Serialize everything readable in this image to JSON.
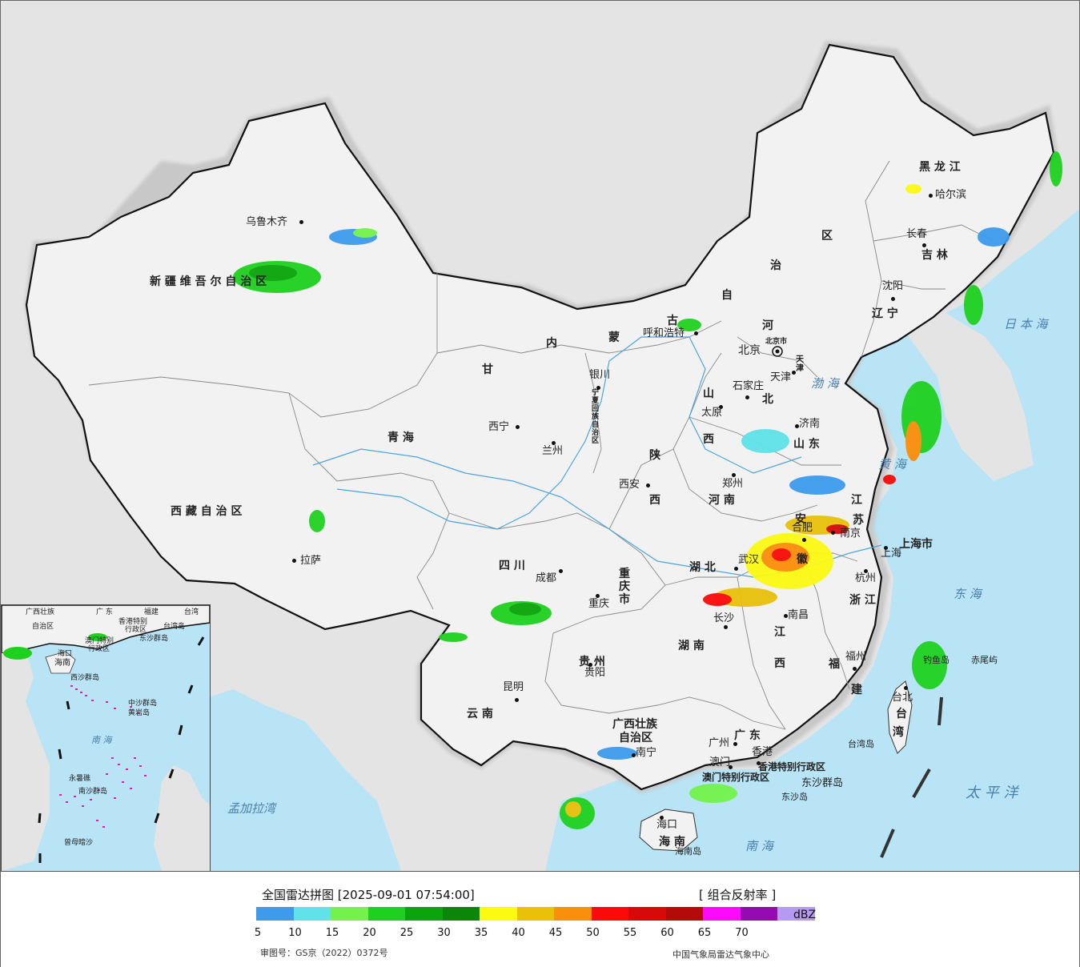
{
  "legend": {
    "title": "全国雷达拼图 [2025-09-01 07:54:00]",
    "product": "[ 组合反射率 ]",
    "unit": "dBZ",
    "ticks": [
      "5",
      "10",
      "15",
      "20",
      "25",
      "30",
      "35",
      "40",
      "45",
      "50",
      "55",
      "60",
      "65",
      "70"
    ],
    "colors": [
      "#3d9bed",
      "#5fe3e8",
      "#73f24c",
      "#1fd11f",
      "#0aa50a",
      "#0a870a",
      "#fcf913",
      "#e8c10a",
      "#fb8e0a",
      "#fb0a0a",
      "#d60a0a",
      "#b40a0a",
      "#fb0afb",
      "#960ab4",
      "#b69af2"
    ],
    "approval": "审图号：GS京（2022）0372号",
    "source": "中国气象局雷达气象中心"
  },
  "colors": {
    "sea": "#b8e4f5",
    "land": "#f2f2f2",
    "foreign": "#e4e4e4",
    "border": "#111111"
  },
  "provinces": [
    {
      "id": "xinjiang",
      "text": "新 疆 维 吾 尔 自 治 区"
    },
    {
      "id": "xizang",
      "text": "西 藏 自 治 区"
    },
    {
      "id": "qinghai",
      "text": "青 海"
    },
    {
      "id": "gansu",
      "text": "甘"
    },
    {
      "id": "sichuan",
      "text": "四 川"
    },
    {
      "id": "yunnan",
      "text": "云 南"
    },
    {
      "id": "guizhou",
      "text": "贵 州"
    },
    {
      "id": "chongqing",
      "text": "重 庆 市"
    },
    {
      "id": "guangxi",
      "text": "广西壮族"
    },
    {
      "id": "guangxi2",
      "text": "自治区"
    },
    {
      "id": "guangdong",
      "text": "广 东"
    },
    {
      "id": "hainan",
      "text": "海 南"
    },
    {
      "id": "hunan",
      "text": "湖 南"
    },
    {
      "id": "hubei",
      "text": "湖 北"
    },
    {
      "id": "jiangxi",
      "text": "江"
    },
    {
      "id": "jiangxi2",
      "text": "西"
    },
    {
      "id": "fujian",
      "text": "福"
    },
    {
      "id": "fujian2",
      "text": "建"
    },
    {
      "id": "zhejiang",
      "text": "浙 江"
    },
    {
      "id": "anhui",
      "text": "安"
    },
    {
      "id": "anhui2",
      "text": "徽"
    },
    {
      "id": "jiangsu",
      "text": "江"
    },
    {
      "id": "jiangsu2",
      "text": "苏"
    },
    {
      "id": "shanghai",
      "text": "上海市"
    },
    {
      "id": "shandong",
      "text": "山 东"
    },
    {
      "id": "henan",
      "text": "河 南"
    },
    {
      "id": "shanxi",
      "text": "山"
    },
    {
      "id": "shanxi2",
      "text": "西"
    },
    {
      "id": "shaanxi",
      "text": "陕"
    },
    {
      "id": "shaanxi2",
      "text": "西"
    },
    {
      "id": "hebei",
      "text": "河"
    },
    {
      "id": "hebei2",
      "text": "北"
    },
    {
      "id": "neimeng",
      "text": "内"
    },
    {
      "id": "neimeng2",
      "text": "蒙"
    },
    {
      "id": "neimeng3",
      "text": "古"
    },
    {
      "id": "neimeng4",
      "text": "自"
    },
    {
      "id": "neimeng5",
      "text": "治"
    },
    {
      "id": "neimeng6",
      "text": "区"
    },
    {
      "id": "liaoning",
      "text": "辽 宁"
    },
    {
      "id": "jilin",
      "text": "吉 林"
    },
    {
      "id": "heilongjiang",
      "text": "黑 龙 江"
    },
    {
      "id": "taiwan",
      "text": "台"
    },
    {
      "id": "taiwan2",
      "text": "湾"
    },
    {
      "id": "ningxia",
      "text": "宁夏回族自治区"
    },
    {
      "id": "tianjin",
      "text": "天津"
    },
    {
      "id": "beijing",
      "text": "北京市"
    }
  ],
  "cities": [
    {
      "id": "urumqi",
      "text": "乌鲁木齐"
    },
    {
      "id": "lhasa",
      "text": "拉萨"
    },
    {
      "id": "xining",
      "text": "西宁"
    },
    {
      "id": "lanzhou",
      "text": "兰州"
    },
    {
      "id": "yinchuan",
      "text": "银川"
    },
    {
      "id": "hohhot",
      "text": "呼和浩特"
    },
    {
      "id": "beijing",
      "text": "北京"
    },
    {
      "id": "tianjin",
      "text": "天津"
    },
    {
      "id": "shijiazhuang",
      "text": "石家庄"
    },
    {
      "id": "taiyuan",
      "text": "太原"
    },
    {
      "id": "jinan",
      "text": "济南"
    },
    {
      "id": "zhengzhou",
      "text": "郑州"
    },
    {
      "id": "xian",
      "text": "西安"
    },
    {
      "id": "chengdu",
      "text": "成都"
    },
    {
      "id": "chongqing",
      "text": "重庆"
    },
    {
      "id": "guiyang",
      "text": "贵阳"
    },
    {
      "id": "kunming",
      "text": "昆明"
    },
    {
      "id": "nanning",
      "text": "南宁"
    },
    {
      "id": "guangzhou",
      "text": "广州"
    },
    {
      "id": "hongkong",
      "text": "香港"
    },
    {
      "id": "macau",
      "text": "澳门"
    },
    {
      "id": "haikou",
      "text": "海口"
    },
    {
      "id": "changsha",
      "text": "长沙"
    },
    {
      "id": "wuhan",
      "text": "武汉"
    },
    {
      "id": "nanchang",
      "text": "南昌"
    },
    {
      "id": "fuzhou",
      "text": "福州"
    },
    {
      "id": "taipei",
      "text": "台北"
    },
    {
      "id": "hangzhou",
      "text": "杭州"
    },
    {
      "id": "shanghai",
      "text": "上海"
    },
    {
      "id": "nanjing",
      "text": "南京"
    },
    {
      "id": "hefei",
      "text": "合肥"
    },
    {
      "id": "shenyang",
      "text": "沈阳"
    },
    {
      "id": "changchun",
      "text": "长春"
    },
    {
      "id": "harbin",
      "text": "哈尔滨"
    }
  ],
  "features": [
    {
      "id": "hk-sar",
      "text": "香港特别行政区"
    },
    {
      "id": "macau-sar",
      "text": "澳门特别行政区"
    },
    {
      "id": "dongsha",
      "text": "东沙群岛"
    },
    {
      "id": "dongsha2",
      "text": "东沙岛"
    },
    {
      "id": "hainandao",
      "text": "海南岛"
    },
    {
      "id": "taiwandao",
      "text": "台湾岛"
    },
    {
      "id": "chiweiyu",
      "text": "赤尾屿"
    },
    {
      "id": "diaoyudao",
      "text": "钓鱼岛"
    }
  ],
  "seas": [
    {
      "id": "bohai",
      "text": "渤 海"
    },
    {
      "id": "huanghai",
      "text": "黄 海"
    },
    {
      "id": "donghai",
      "text": "东 海"
    },
    {
      "id": "nanhai",
      "text": "南 海"
    },
    {
      "id": "taipingyang",
      "text": "太 平 洋"
    },
    {
      "id": "ribenhai",
      "text": "日 本 海"
    },
    {
      "id": "mengjiala",
      "text": "孟加拉湾"
    }
  ],
  "inset": {
    "labels": [
      {
        "id": "i-guangxi",
        "text": "广西壮族"
      },
      {
        "id": "i-guangxi2",
        "text": "自治区"
      },
      {
        "id": "i-guangdong",
        "text": "广 东"
      },
      {
        "id": "i-xianggang",
        "text": "香港特别"
      },
      {
        "id": "i-xianggang2",
        "text": "行政区"
      },
      {
        "id": "i-aomen",
        "text": "澳门特别"
      },
      {
        "id": "i-aomen2",
        "text": "行政区"
      },
      {
        "id": "i-taiwan",
        "text": "台湾"
      },
      {
        "id": "i-taiwandao",
        "text": "台湾岛"
      },
      {
        "id": "i-dongsha",
        "text": "东沙群岛"
      },
      {
        "id": "i-haikou",
        "text": "海口"
      },
      {
        "id": "i-hainan",
        "text": "海南"
      },
      {
        "id": "i-xisha",
        "text": "西沙群岛"
      },
      {
        "id": "i-zhongsha",
        "text": "中沙群岛"
      },
      {
        "id": "i-huangyan",
        "text": "黄岩岛"
      },
      {
        "id": "i-nansha",
        "text": "南沙群岛"
      },
      {
        "id": "i-yongshu",
        "text": "永暑礁"
      },
      {
        "id": "i-zengmu",
        "text": "曾母暗沙"
      },
      {
        "id": "i-fujian",
        "text": "福建"
      }
    ],
    "sea": "南 海"
  }
}
